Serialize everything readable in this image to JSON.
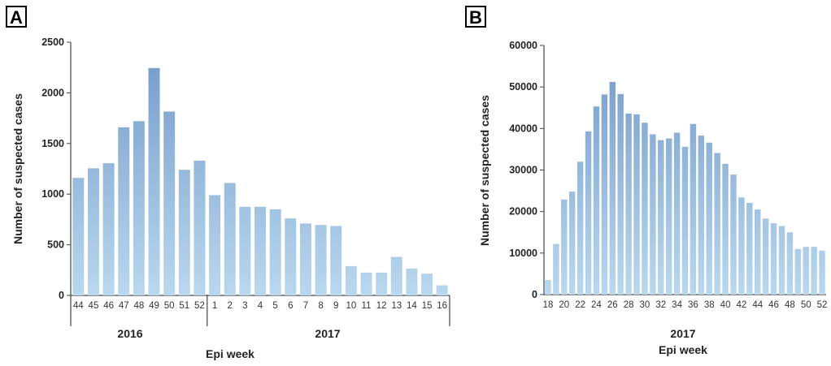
{
  "chart_data": [
    {
      "panel": "A",
      "type": "bar",
      "ylabel": "Number of suspected cases",
      "xlabel": "Epi week",
      "ylim": [
        0,
        2500
      ],
      "yticks": [
        0,
        500,
        1000,
        1500,
        2000,
        2500
      ],
      "groups": [
        {
          "label": "2016",
          "categories": [
            "44",
            "45",
            "46",
            "47",
            "48",
            "49",
            "50",
            "51",
            "52"
          ]
        },
        {
          "label": "2017",
          "categories": [
            "1",
            "2",
            "3",
            "4",
            "5",
            "6",
            "7",
            "8",
            "9",
            "10",
            "11",
            "12",
            "13",
            "14",
            "15",
            "16"
          ]
        }
      ],
      "categories": [
        "44",
        "45",
        "46",
        "47",
        "48",
        "49",
        "50",
        "51",
        "52",
        "1",
        "2",
        "3",
        "4",
        "5",
        "6",
        "7",
        "8",
        "9",
        "10",
        "11",
        "12",
        "13",
        "14",
        "15",
        "16"
      ],
      "values": [
        1160,
        1255,
        1305,
        1660,
        1720,
        2245,
        1815,
        1240,
        1330,
        990,
        1110,
        875,
        875,
        850,
        760,
        710,
        695,
        685,
        290,
        225,
        225,
        380,
        265,
        215,
        100
      ]
    },
    {
      "panel": "B",
      "type": "bar",
      "ylabel": "Number of suspected cases",
      "xlabel": "Epi week",
      "group_label": "2017",
      "ylim": [
        0,
        60000
      ],
      "yticks": [
        0,
        10000,
        20000,
        30000,
        40000,
        50000,
        60000
      ],
      "categories": [
        "18",
        "19",
        "20",
        "21",
        "22",
        "23",
        "24",
        "25",
        "26",
        "27",
        "28",
        "29",
        "30",
        "31",
        "32",
        "33",
        "34",
        "35",
        "36",
        "37",
        "38",
        "39",
        "40",
        "41",
        "42",
        "43",
        "44",
        "45",
        "46",
        "47",
        "48",
        "49",
        "50",
        "51",
        "52"
      ],
      "tick_labels": [
        "18",
        "20",
        "22",
        "24",
        "26",
        "28",
        "30",
        "32",
        "34",
        "36",
        "38",
        "40",
        "42",
        "44",
        "46",
        "48",
        "50",
        "52"
      ],
      "values": [
        3500,
        12200,
        22900,
        24800,
        32000,
        39300,
        45300,
        48200,
        51200,
        48300,
        43600,
        43400,
        41400,
        38600,
        37200,
        37600,
        39000,
        35600,
        41100,
        38300,
        36600,
        34100,
        31500,
        28900,
        23400,
        22100,
        20500,
        18300,
        17200,
        16500,
        15000,
        11000,
        11500,
        11500,
        10600
      ]
    }
  ],
  "colors": {
    "bar_top": "#7399c8",
    "bar_bottom": "#b9d8ee",
    "axis": "#444444"
  }
}
